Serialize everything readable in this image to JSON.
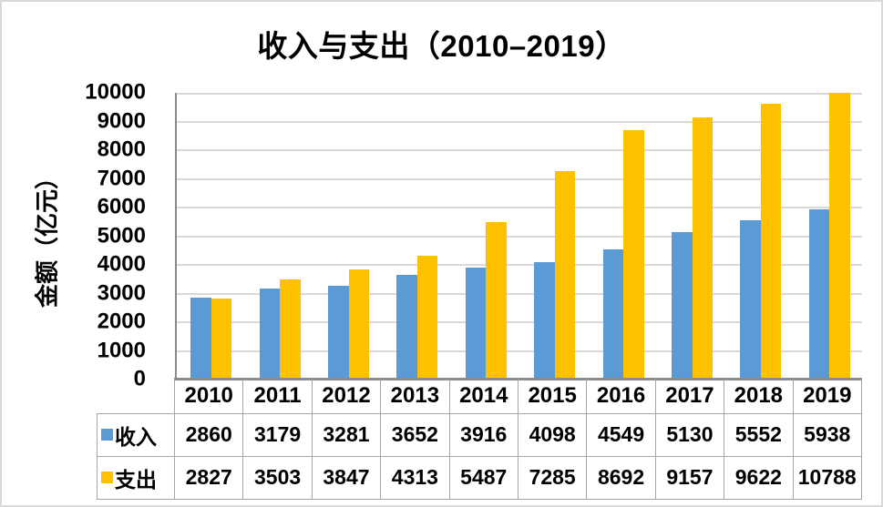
{
  "frame": {
    "background": "#ffffff",
    "border_color": "#d9d9d9"
  },
  "chart_data": {
    "type": "bar",
    "title": "收入与支出（2010–2019）",
    "ylabel": "金额（亿元）",
    "categories": [
      "2010",
      "2011",
      "2012",
      "2013",
      "2014",
      "2015",
      "2016",
      "2017",
      "2018",
      "2019"
    ],
    "series": [
      {
        "name": "收入",
        "color": "#5B9BD5",
        "values": [
          2860,
          3179,
          3281,
          3652,
          3916,
          4098,
          4549,
          5130,
          5552,
          5938
        ]
      },
      {
        "name": "支出",
        "color": "#FFC000",
        "values": [
          2827,
          3503,
          3847,
          4313,
          5487,
          7285,
          8692,
          9157,
          9622,
          10788
        ]
      }
    ],
    "ylim": [
      0,
      10000
    ],
    "yticks": [
      0,
      1000,
      2000,
      3000,
      4000,
      5000,
      6000,
      7000,
      8000,
      9000,
      10000
    ],
    "grid": true,
    "gridline_color": "#d9d9d9",
    "axis_line_color": "#8c8c8c",
    "table_border_color": "#a6a6a6",
    "legend_position": "data-table-left",
    "data_table": true,
    "bars_clipped_at_ymax": [
      "支出 2019"
    ]
  }
}
